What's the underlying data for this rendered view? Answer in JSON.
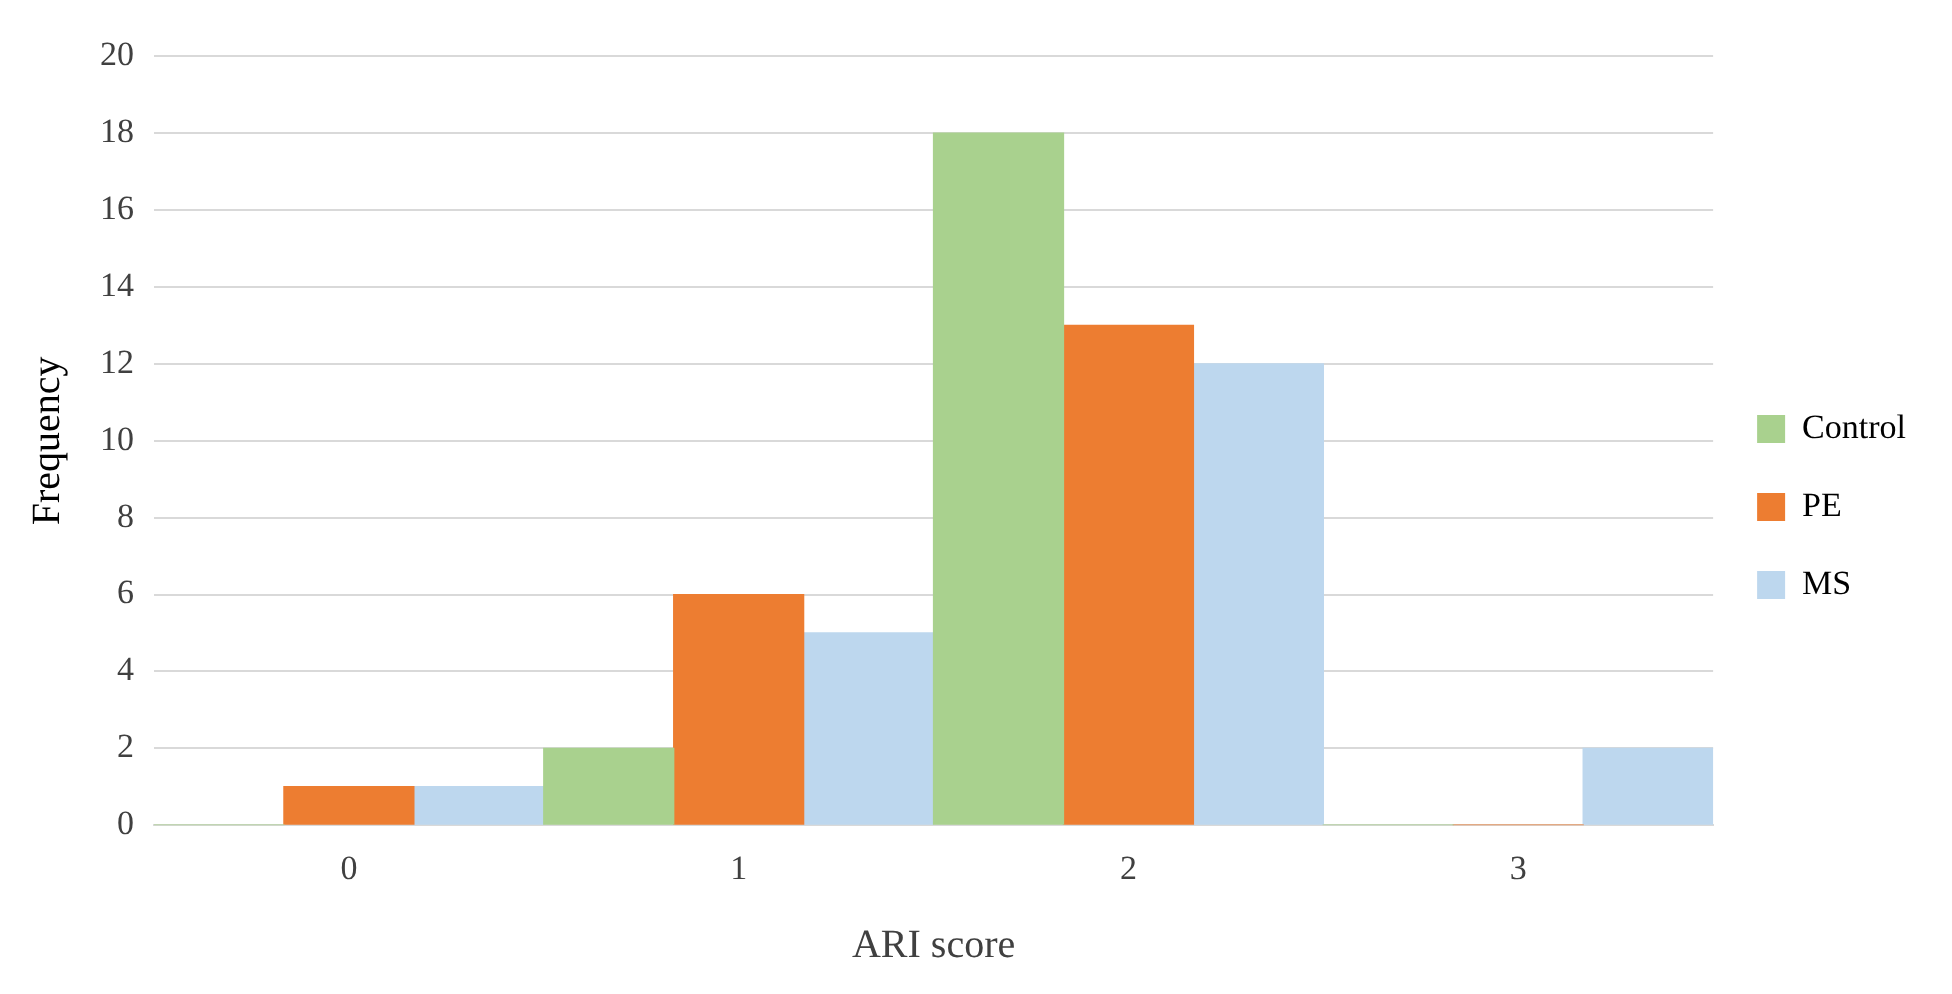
{
  "chart_data": {
    "type": "bar",
    "xlabel": "ARI score",
    "ylabel": "Frequency",
    "categories": [
      "0",
      "1",
      "2",
      "3"
    ],
    "series": [
      {
        "name": "Control",
        "color": "#a9d18e",
        "values": [
          0,
          2,
          18,
          0
        ]
      },
      {
        "name": "PE",
        "color": "#ed7d31",
        "values": [
          1,
          6,
          13,
          0
        ]
      },
      {
        "name": "MS",
        "color": "#bdd7ee",
        "values": [
          1,
          5,
          12,
          2
        ]
      }
    ],
    "ylim": [
      0,
      20
    ],
    "yticks": [
      0,
      2,
      4,
      6,
      8,
      10,
      12,
      14,
      16,
      18,
      20
    ],
    "grid": "y",
    "legend": "right"
  }
}
